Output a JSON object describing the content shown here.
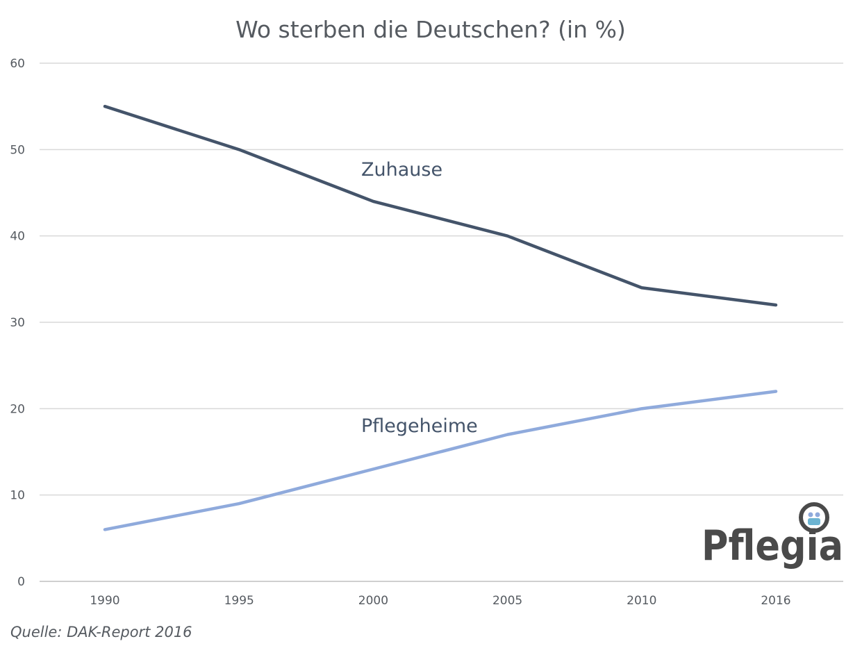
{
  "chart_data": {
    "type": "line",
    "title": "Wo sterben die Deutschen? (in %)",
    "categories": [
      "1990",
      "1995",
      "2000",
      "2005",
      "2010",
      "2016"
    ],
    "ylim": [
      0,
      60
    ],
    "yticks": [
      "0",
      "10",
      "20",
      "30",
      "40",
      "50",
      "60"
    ],
    "grid": true,
    "legend": "inline labels",
    "series": [
      {
        "name": "Zuhause",
        "values": [
          55,
          50,
          44,
          40,
          34,
          32
        ],
        "color": "#44546a"
      },
      {
        "name": "Pflegeheime",
        "values": [
          6,
          9,
          13,
          17,
          20,
          22
        ],
        "color": "#8faadc"
      }
    ]
  },
  "source": "Quelle: DAK-Report 2016",
  "logo": {
    "text": "Pflegia",
    "icon": "magnifier-people-icon"
  }
}
